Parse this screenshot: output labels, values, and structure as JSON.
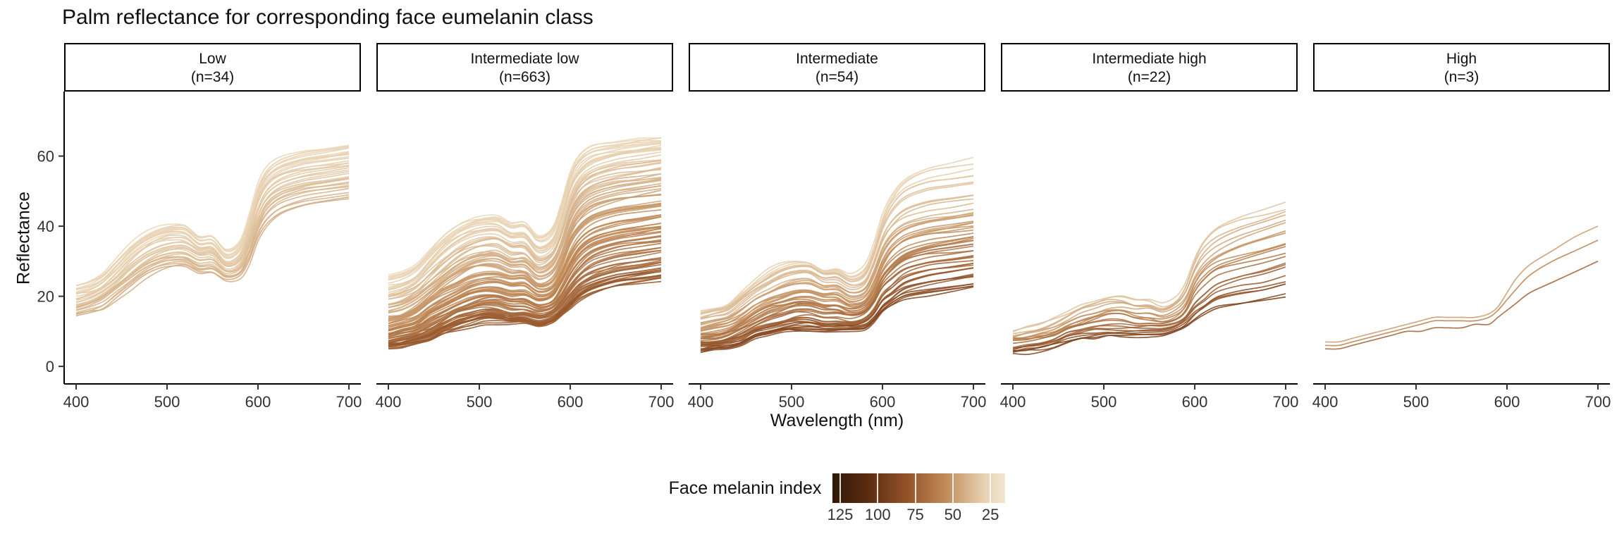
{
  "chart_data": {
    "type": "line",
    "title": "Palm reflectance for corresponding face eumelanin class",
    "xlabel": "Wavelength (nm)",
    "ylabel": "Reflectance",
    "x_ticks": [
      400,
      500,
      600,
      700
    ],
    "y_ticks": [
      0,
      20,
      40,
      60
    ],
    "xlim": [
      400,
      700
    ],
    "ylim": [
      0,
      68
    ],
    "grid": false,
    "x": [
      400,
      415,
      430,
      445,
      460,
      475,
      490,
      505,
      520,
      535,
      550,
      565,
      580,
      590,
      600,
      610,
      625,
      650,
      675,
      700
    ],
    "facets": [
      {
        "label": "Low",
        "sublabel": "(n=34)",
        "n": 34,
        "series": [
          {
            "melanin": 24,
            "y": [
              23,
              24,
              26,
              30,
              34,
              37,
              39,
              40,
              40,
              37,
              37,
              33,
              35,
              42,
              51,
              56,
              59,
              61,
              62,
              63
            ]
          },
          {
            "melanin": 28,
            "y": [
              21,
              22,
              24,
              28,
              32,
              35,
              37,
              38,
              38,
              35,
              35,
              31,
              33,
              39,
              48,
              53,
              56,
              58,
              59,
              60
            ]
          },
          {
            "melanin": 32,
            "y": [
              19,
              20,
              22,
              25,
              29,
              32,
              34,
              35,
              35,
              33,
              33,
              29,
              31,
              37,
              45,
              50,
              53,
              55,
              56,
              57
            ]
          },
          {
            "melanin": 36,
            "y": [
              17,
              18,
              20,
              23,
              26,
              29,
              31,
              32,
              32,
              30,
              30,
              27,
              28,
              34,
              41,
              46,
              49,
              51,
              52,
              53
            ]
          },
          {
            "melanin": 42,
            "y": [
              15,
              16,
              17,
              20,
              23,
              26,
              28,
              29,
              29,
              27,
              27,
              25,
              26,
              30,
              37,
              41,
              44,
              46,
              47,
              48
            ]
          }
        ]
      },
      {
        "label": "Intermediate low",
        "sublabel": "(n=663)",
        "n": 663,
        "series": [
          {
            "melanin": 24,
            "y": [
              26,
              27,
              29,
              33,
              37,
              40,
              42,
              43,
              43,
              41,
              41,
              37,
              39,
              46,
              55,
              60,
              63,
              64,
              65,
              65
            ]
          },
          {
            "melanin": 32,
            "y": [
              21,
              22,
              24,
              28,
              32,
              35,
              37,
              38,
              38,
              36,
              36,
              32,
              34,
              40,
              49,
              54,
              57,
              59,
              60,
              61
            ]
          },
          {
            "melanin": 40,
            "y": [
              17,
              18,
              20,
              23,
              26,
              29,
              31,
              32,
              32,
              30,
              30,
              27,
              29,
              34,
              42,
              47,
              50,
              52,
              53,
              54
            ]
          },
          {
            "melanin": 48,
            "y": [
              13,
              14,
              16,
              19,
              22,
              24,
              26,
              27,
              27,
              26,
              26,
              23,
              24,
              29,
              36,
              40,
              43,
              45,
              46,
              47
            ]
          },
          {
            "melanin": 56,
            "y": [
              10,
              11,
              12,
              15,
              17,
              19,
              21,
              22,
              22,
              21,
              21,
              19,
              20,
              24,
              29,
              33,
              36,
              38,
              39,
              40
            ]
          },
          {
            "melanin": 64,
            "y": [
              8,
              9,
              10,
              12,
              14,
              16,
              17,
              18,
              18,
              17,
              17,
              16,
              17,
              20,
              24,
              27,
              30,
              32,
              33,
              34
            ]
          },
          {
            "melanin": 72,
            "y": [
              6,
              7,
              8,
              9,
              11,
              13,
              14,
              15,
              15,
              14,
              14,
              13,
              14,
              16,
              19,
              22,
              24,
              26,
              27,
              28
            ]
          },
          {
            "melanin": 78,
            "y": [
              6,
              6,
              7,
              8,
              10,
              11,
              12,
              13,
              13,
              13,
              13,
              12,
              13,
              15,
              17,
              19,
              21,
              23,
              24,
              25
            ]
          }
        ]
      },
      {
        "label": "Intermediate",
        "sublabel": "(n=54)",
        "n": 54,
        "series": [
          {
            "melanin": 28,
            "y": [
              16,
              17,
              18,
              21,
              24,
              27,
              29,
              30,
              30,
              28,
              28,
              26,
              28,
              34,
              43,
              49,
              54,
              57,
              58,
              59
            ]
          },
          {
            "melanin": 40,
            "y": [
              13,
              14,
              15,
              18,
              21,
              23,
              25,
              26,
              26,
              24,
              24,
              22,
              23,
              28,
              35,
              39,
              42,
              44,
              45,
              46
            ]
          },
          {
            "melanin": 52,
            "y": [
              10,
              11,
              12,
              14,
              17,
              19,
              20,
              21,
              21,
              20,
              20,
              18,
              19,
              23,
              29,
              33,
              36,
              38,
              39,
              40
            ]
          },
          {
            "melanin": 64,
            "y": [
              8,
              8,
              9,
              11,
              13,
              15,
              16,
              17,
              17,
              16,
              16,
              15,
              16,
              19,
              24,
              27,
              30,
              32,
              33,
              34
            ]
          },
          {
            "melanin": 76,
            "y": [
              6,
              6,
              7,
              8,
              10,
              11,
              12,
              13,
              13,
              12,
              12,
              12,
              13,
              15,
              19,
              21,
              24,
              26,
              27,
              28
            ]
          },
          {
            "melanin": 88,
            "y": [
              4,
              5,
              5,
              6,
              8,
              9,
              10,
              10,
              10,
              10,
              10,
              10,
              10,
              12,
              15,
              17,
              19,
              20,
              21,
              22
            ]
          }
        ]
      },
      {
        "label": "Intermediate high",
        "sublabel": "(n=22)",
        "n": 22,
        "series": [
          {
            "melanin": 34,
            "y": [
              10,
              11,
              12,
              14,
              16,
              18,
              19,
              20,
              20,
              19,
              19,
              18,
              20,
              24,
              31,
              36,
              40,
              43,
              45,
              47
            ]
          },
          {
            "melanin": 48,
            "y": [
              8,
              9,
              10,
              11,
              13,
              15,
              16,
              17,
              17,
              16,
              16,
              15,
              17,
              20,
              26,
              30,
              33,
              36,
              38,
              40
            ]
          },
          {
            "melanin": 62,
            "y": [
              7,
              7,
              8,
              9,
              11,
              12,
              13,
              14,
              14,
              13,
              13,
              13,
              14,
              16,
              21,
              24,
              27,
              29,
              31,
              33
            ]
          },
          {
            "melanin": 76,
            "y": [
              5,
              6,
              6,
              7,
              9,
              10,
              11,
              11,
              11,
              11,
              11,
              11,
              12,
              14,
              17,
              19,
              22,
              24,
              25,
              27
            ]
          },
          {
            "melanin": 92,
            "y": [
              4,
              4,
              5,
              6,
              7,
              8,
              8,
              9,
              9,
              9,
              9,
              9,
              10,
              11,
              13,
              15,
              17,
              18,
              19,
              20
            ]
          }
        ]
      },
      {
        "label": "High",
        "sublabel": "(n=3)",
        "n": 3,
        "series": [
          {
            "melanin": 48,
            "y": [
              7,
              7,
              8,
              9,
              10,
              11,
              12,
              13,
              14,
              14,
              14,
              14,
              15,
              17,
              21,
              25,
              29,
              33,
              37,
              40
            ]
          },
          {
            "melanin": 58,
            "y": [
              6,
              6,
              7,
              8,
              9,
              10,
              11,
              12,
              13,
              13,
              13,
              13,
              14,
              16,
              19,
              22,
              26,
              30,
              33,
              36
            ]
          },
          {
            "melanin": 72,
            "y": [
              5,
              5,
              6,
              7,
              8,
              9,
              10,
              10,
              11,
              11,
              11,
              12,
              12,
              14,
              16,
              18,
              21,
              24,
              27,
              30
            ]
          }
        ]
      }
    ],
    "legend": {
      "title": "Face melanin index",
      "ticks": [
        125,
        100,
        75,
        50,
        25
      ],
      "domain": [
        130,
        15
      ],
      "stops": [
        {
          "v": 130,
          "c": "#2f1707"
        },
        {
          "v": 105,
          "c": "#5e2e12"
        },
        {
          "v": 80,
          "c": "#94542a"
        },
        {
          "v": 55,
          "c": "#c08a58"
        },
        {
          "v": 30,
          "c": "#e6cfae"
        },
        {
          "v": 15,
          "c": "#f3e6d2"
        }
      ]
    }
  }
}
